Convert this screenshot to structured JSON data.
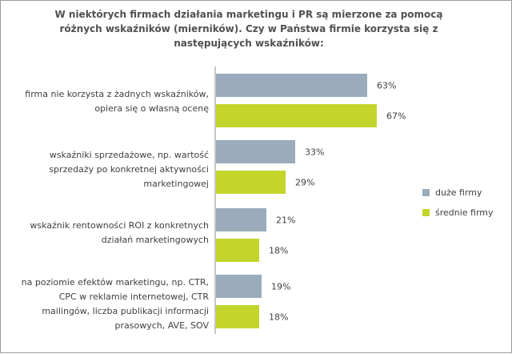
{
  "chart_data": {
    "type": "bar",
    "orientation": "horizontal",
    "title": "W niektórych firmach działania marketingu i PR są mierzone za pomocą różnych wskaźników (mierników). Czy w Państwa firmie korzysta się z następujących wskaźników:",
    "categories": [
      "firma nie korzysta z żadnych wskaźników, opiera się o własną ocenę",
      "wskaźniki sprzedażowe, np. wartość sprzedaży po konkretnej aktywności marketingowej",
      "wskaźnik rentowności ROI z konkretnych działań marketingowych",
      "na poziomie efektów marketingu, np. CTR, CPC w reklamie internetowej, CTR mailingów, liczba publikacji informacji prasowych, AVE, SOV"
    ],
    "series": [
      {
        "name": "duże firmy",
        "color": "#9aacbb",
        "values": [
          63,
          33,
          21,
          19
        ],
        "labels": [
          "63%",
          "33%",
          "21%",
          "19%"
        ]
      },
      {
        "name": "średnie firmy",
        "color": "#c3d52b",
        "values": [
          67,
          29,
          18,
          18
        ],
        "labels": [
          "67%",
          "29%",
          "18%",
          "18%"
        ]
      }
    ],
    "unit": "%",
    "grid": false,
    "legend": "right"
  }
}
